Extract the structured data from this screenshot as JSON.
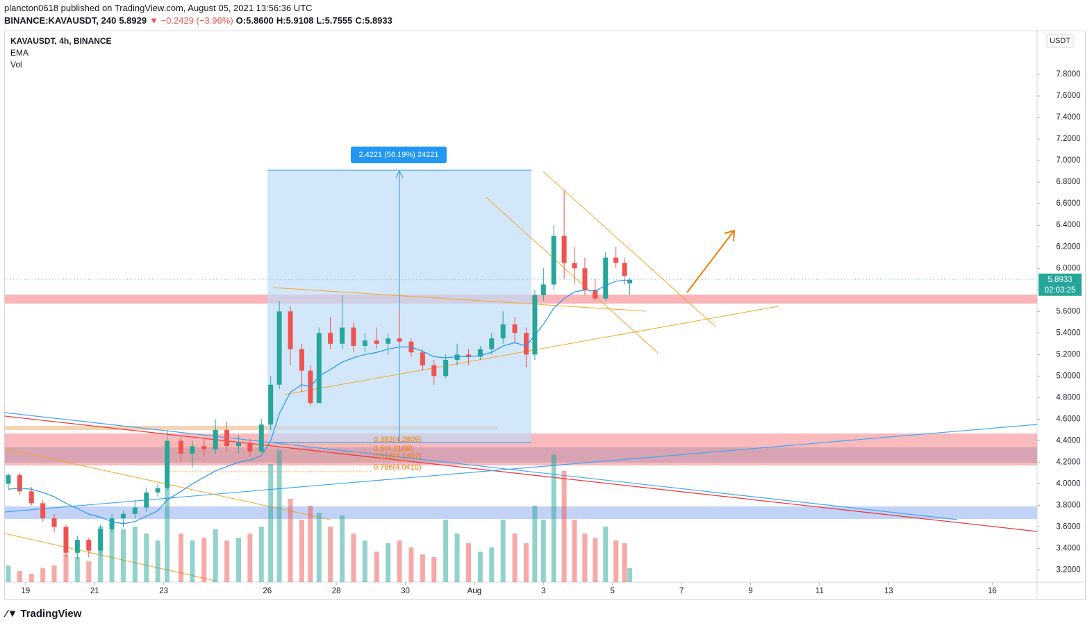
{
  "header": {
    "publisher": "plancton0618 published on TradingView.com, August 05, 2021 13:56:36 UTC",
    "symbol": "BINANCE:KAVAUSDT, 240",
    "last": "5.8929",
    "change": "▼ −0.2429 (−3.96%)",
    "o": "O:5.8600",
    "h": "H:5.9108",
    "l": "L:5.7555",
    "c": "C:5.8933"
  },
  "legend": {
    "title": "KAVAUSDT, 4h, BINANCE",
    "ema": "EMA",
    "vol": "Vol"
  },
  "annotations": {
    "measure": "2.4221 (56.19%) 24221",
    "fib382": "0.382(4.2809)",
    "fib5": "0.5(4.2108)",
    "fib618": "0.618(4.1407)",
    "fib786": "0.786(4.0410)"
  },
  "footer": "TradingView",
  "chart_data": {
    "type": "candlestick",
    "currency": "USDT",
    "x": [
      -0.5,
      -0.17,
      0.17,
      0.5,
      0.83,
      1.17,
      1.5,
      1.83,
      2.17,
      2.5,
      2.83,
      3.17,
      3.5,
      3.83,
      4.1,
      4.5,
      4.83,
      5.17,
      5.5,
      5.83,
      6.17,
      6.5,
      6.83,
      7.1,
      7.35,
      7.67,
      8.0,
      8.25,
      8.5,
      8.83,
      9.17,
      9.5,
      9.83,
      10.17,
      10.5,
      10.83,
      11.17,
      11.5,
      11.83,
      12.17,
      12.5,
      12.83,
      13.17,
      13.5,
      13.83,
      14.17,
      14.5,
      14.75,
      15.0,
      15.3,
      15.6,
      15.9,
      16.2,
      16.5,
      16.8,
      17.1,
      17.35,
      17.5
    ],
    "open": [
      4.0,
      4.08,
      3.93,
      3.82,
      3.68,
      3.6,
      3.36,
      3.48,
      3.38,
      3.58,
      3.68,
      3.72,
      3.78,
      3.92,
      3.96,
      4.4,
      4.28,
      4.35,
      4.32,
      4.5,
      4.35,
      4.38,
      4.3,
      4.55,
      4.92,
      5.6,
      5.25,
      5.05,
      4.75,
      5.4,
      5.3,
      5.45,
      5.28,
      5.33,
      5.3,
      5.35,
      5.32,
      5.22,
      5.1,
      5.0,
      5.15,
      5.2,
      5.18,
      5.25,
      5.35,
      5.48,
      5.4,
      5.2,
      5.75,
      5.85,
      6.3,
      6.05,
      6.0,
      5.8,
      5.72,
      6.1,
      6.05,
      5.86
    ],
    "high": [
      4.1,
      4.1,
      3.97,
      3.85,
      3.72,
      3.62,
      3.52,
      3.5,
      3.62,
      3.72,
      3.75,
      3.85,
      3.96,
      4.0,
      4.5,
      4.45,
      4.4,
      4.42,
      4.6,
      4.58,
      4.45,
      4.42,
      4.6,
      5.0,
      5.7,
      5.65,
      5.3,
      5.1,
      5.45,
      5.55,
      5.75,
      5.5,
      5.4,
      5.45,
      5.4,
      5.62,
      5.35,
      5.25,
      5.15,
      5.2,
      5.3,
      5.25,
      5.28,
      5.4,
      5.6,
      5.55,
      5.45,
      5.8,
      6.0,
      6.4,
      6.72,
      6.2,
      6.1,
      5.9,
      6.15,
      6.2,
      6.1,
      5.9108
    ],
    "low": [
      3.95,
      3.9,
      3.8,
      3.65,
      3.55,
      3.32,
      3.3,
      3.32,
      3.35,
      3.55,
      3.6,
      3.68,
      3.74,
      3.88,
      3.94,
      4.2,
      4.15,
      4.25,
      4.28,
      4.3,
      4.28,
      4.25,
      4.28,
      4.5,
      4.88,
      5.1,
      4.85,
      4.72,
      4.75,
      5.25,
      5.25,
      5.22,
      5.22,
      5.25,
      5.2,
      5.3,
      5.18,
      5.05,
      4.92,
      4.98,
      5.1,
      5.1,
      5.15,
      5.2,
      5.3,
      5.3,
      5.08,
      5.15,
      5.7,
      5.8,
      5.9,
      5.85,
      5.75,
      5.7,
      5.7,
      6.0,
      5.85,
      5.7555
    ],
    "close": [
      4.08,
      3.93,
      3.82,
      3.68,
      3.6,
      3.36,
      3.48,
      3.38,
      3.58,
      3.68,
      3.72,
      3.78,
      3.92,
      3.96,
      4.4,
      4.28,
      4.35,
      4.32,
      4.5,
      4.35,
      4.38,
      4.3,
      4.55,
      4.92,
      5.6,
      5.25,
      5.05,
      4.75,
      5.4,
      5.3,
      5.45,
      5.28,
      5.33,
      5.3,
      5.35,
      5.32,
      5.22,
      5.1,
      5.0,
      5.15,
      5.2,
      5.18,
      5.25,
      5.35,
      5.48,
      5.4,
      5.2,
      5.75,
      5.85,
      6.3,
      6.05,
      6.0,
      5.8,
      5.72,
      6.1,
      6.05,
      5.93,
      5.8933
    ],
    "volume": [
      12,
      8,
      6,
      10,
      12,
      20,
      18,
      15,
      40,
      45,
      38,
      40,
      35,
      30,
      90,
      35,
      30,
      32,
      38,
      30,
      32,
      35,
      40,
      85,
      95,
      60,
      45,
      55,
      50,
      40,
      48,
      35,
      30,
      22,
      28,
      30,
      25,
      20,
      18,
      45,
      35,
      28,
      22,
      25,
      45,
      35,
      28,
      55,
      45,
      92,
      80,
      45,
      35,
      32,
      40,
      30,
      28,
      10
    ],
    "ema": [
      3.95,
      3.96,
      3.95,
      3.92,
      3.88,
      3.82,
      3.77,
      3.72,
      3.69,
      3.65,
      3.63,
      3.65,
      3.7,
      3.75,
      3.85,
      3.93,
      4.0,
      4.06,
      4.12,
      4.16,
      4.2,
      4.22,
      4.26,
      4.4,
      4.65,
      4.85,
      4.92,
      4.9,
      5.0,
      5.06,
      5.13,
      5.17,
      5.2,
      5.22,
      5.25,
      5.27,
      5.27,
      5.23,
      5.18,
      5.17,
      5.18,
      5.18,
      5.19,
      5.22,
      5.28,
      5.31,
      5.28,
      5.38,
      5.48,
      5.63,
      5.72,
      5.78,
      5.8,
      5.79,
      5.84,
      5.88,
      5.89,
      5.89
    ],
    "price_label": 5.8933,
    "countdown": "02:03:25",
    "ylim": [
      3.0875,
      8.2
    ],
    "yticks": [
      {
        "value": 3.2,
        "label": "3.2000"
      },
      {
        "value": 3.4,
        "label": "3.4000"
      },
      {
        "value": 3.6,
        "label": "3.6000"
      },
      {
        "value": 3.8,
        "label": "3.8000"
      },
      {
        "value": 4.0,
        "label": "4.0000"
      },
      {
        "value": 4.2,
        "label": "4.2000"
      },
      {
        "value": 4.4,
        "label": "4.4000"
      },
      {
        "value": 4.6,
        "label": "4.6000"
      },
      {
        "value": 4.8,
        "label": "4.8000"
      },
      {
        "value": 5.0,
        "label": "5.0000"
      },
      {
        "value": 5.2,
        "label": "5.2000"
      },
      {
        "value": 5.4,
        "label": "5.4000"
      },
      {
        "value": 5.6,
        "label": "5.6000"
      },
      {
        "value": 5.8,
        "label": "5.8000"
      },
      {
        "value": 6.0,
        "label": "6.0000"
      },
      {
        "value": 6.2,
        "label": "6.2000"
      },
      {
        "value": 6.4,
        "label": "6.4000"
      },
      {
        "value": 6.6,
        "label": "6.6000"
      },
      {
        "value": 6.8,
        "label": "6.8000"
      },
      {
        "value": 7.0,
        "label": "7.0000"
      },
      {
        "value": 7.2,
        "label": "7.2000"
      },
      {
        "value": 7.4,
        "label": "7.4000"
      },
      {
        "value": 7.6,
        "label": "7.6000"
      },
      {
        "value": 7.8,
        "label": "7.8000"
      }
    ],
    "xlim": [
      -0.6,
      29.3
    ],
    "xticks": [
      {
        "value": 0,
        "label": "19"
      },
      {
        "value": 2,
        "label": "21"
      },
      {
        "value": 4,
        "label": "23"
      },
      {
        "value": 7,
        "label": "26"
      },
      {
        "value": 9,
        "label": "28"
      },
      {
        "value": 11,
        "label": "30"
      },
      {
        "value": 13,
        "label": "Aug"
      },
      {
        "value": 15,
        "label": "3"
      },
      {
        "value": 17,
        "label": "5"
      },
      {
        "value": 19,
        "label": "7"
      },
      {
        "value": 21,
        "label": "9"
      },
      {
        "value": 23,
        "label": "11"
      },
      {
        "value": 25,
        "label": "13"
      },
      {
        "value": 28,
        "label": "16"
      }
    ],
    "vlim": [
      0,
      100
    ],
    "colors": {
      "up": "#26a69a",
      "down": "#ef5350",
      "ema": "#2196f3"
    }
  }
}
